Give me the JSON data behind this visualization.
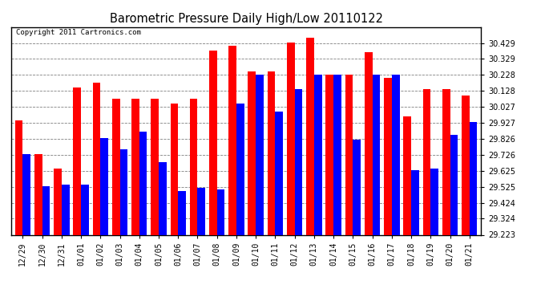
{
  "title": "Barometric Pressure Daily High/Low 20110122",
  "copyright": "Copyright 2011 Cartronics.com",
  "dates": [
    "12/29",
    "12/30",
    "12/31",
    "01/01",
    "01/02",
    "01/03",
    "01/04",
    "01/05",
    "01/06",
    "01/07",
    "01/08",
    "01/09",
    "01/10",
    "01/11",
    "01/12",
    "01/13",
    "01/14",
    "01/15",
    "01/16",
    "01/17",
    "01/18",
    "01/19",
    "01/20",
    "01/21"
  ],
  "highs": [
    29.94,
    29.73,
    29.64,
    30.15,
    30.18,
    30.08,
    30.08,
    30.08,
    30.05,
    30.08,
    30.38,
    30.41,
    30.25,
    30.25,
    30.43,
    30.46,
    30.23,
    30.23,
    30.37,
    30.21,
    29.97,
    30.14,
    30.14,
    30.1
  ],
  "lows": [
    29.73,
    29.53,
    29.54,
    29.54,
    29.83,
    29.76,
    29.87,
    29.68,
    29.5,
    29.52,
    29.51,
    30.05,
    30.23,
    30.0,
    30.14,
    30.23,
    30.23,
    29.82,
    30.23,
    30.23,
    29.63,
    29.64,
    29.85,
    29.93
  ],
  "high_color": "#FF0000",
  "low_color": "#0000FF",
  "bg_color": "#FFFFFF",
  "grid_color": "#808080",
  "ymin": 29.223,
  "ymax": 30.529,
  "yticks": [
    29.223,
    29.324,
    29.424,
    29.525,
    29.625,
    29.726,
    29.826,
    29.927,
    30.027,
    30.128,
    30.228,
    30.329,
    30.429
  ]
}
